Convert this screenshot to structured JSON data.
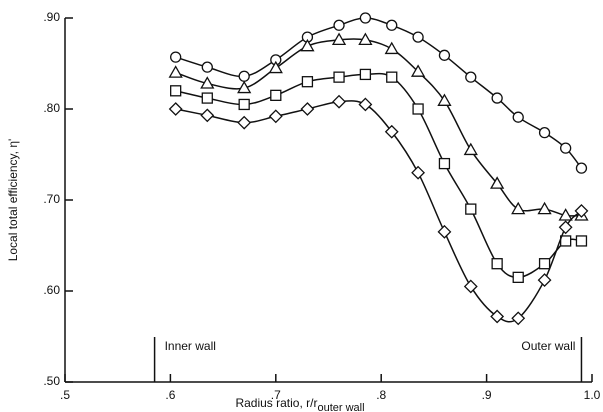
{
  "chart_data": {
    "type": "line",
    "xlabel": "Radius ratio, r/r",
    "xlabel_sub": "outer wall",
    "ylabel": "Local total efficiency, η'",
    "x": [
      0.605,
      0.635,
      0.67,
      0.7,
      0.73,
      0.76,
      0.785,
      0.81,
      0.835,
      0.86,
      0.885,
      0.91,
      0.93,
      0.955,
      0.975,
      0.99
    ],
    "series": [
      {
        "marker": "circle",
        "color": "#111111",
        "values": [
          0.857,
          0.846,
          0.836,
          0.854,
          0.879,
          0.892,
          0.9,
          0.892,
          0.879,
          0.859,
          0.835,
          0.812,
          0.791,
          0.774,
          0.757,
          0.735
        ]
      },
      {
        "marker": "triangle",
        "color": "#111111",
        "values": [
          0.84,
          0.828,
          0.823,
          0.845,
          0.869,
          0.876,
          0.876,
          0.866,
          0.841,
          0.809,
          0.755,
          0.718,
          0.69,
          0.69,
          0.683,
          0.683
        ]
      },
      {
        "marker": "square",
        "color": "#111111",
        "values": [
          0.82,
          0.812,
          0.805,
          0.815,
          0.83,
          0.835,
          0.838,
          0.835,
          0.8,
          0.74,
          0.69,
          0.63,
          0.615,
          0.63,
          0.655,
          0.655
        ]
      },
      {
        "marker": "diamond",
        "color": "#111111",
        "values": [
          0.8,
          0.793,
          0.785,
          0.792,
          0.8,
          0.808,
          0.805,
          0.775,
          0.73,
          0.665,
          0.605,
          0.572,
          0.57,
          0.612,
          0.67,
          0.688
        ]
      }
    ],
    "xlim": [
      0.5,
      1.0
    ],
    "xticks": [
      {
        "value": 0.5,
        "label": ".5"
      },
      {
        "value": 0.6,
        "label": ".6"
      },
      {
        "value": 0.7,
        "label": ".7"
      },
      {
        "value": 0.8,
        "label": ".8"
      },
      {
        "value": 0.9,
        "label": ".9"
      },
      {
        "value": 1.0,
        "label": "1.0"
      }
    ],
    "ylim": [
      0.5,
      0.9
    ],
    "yticks": [
      {
        "value": 0.5,
        "label": ".50"
      },
      {
        "value": 0.6,
        "label": ".60"
      },
      {
        "value": 0.7,
        "label": ".70"
      },
      {
        "value": 0.8,
        "label": ".80"
      },
      {
        "value": 0.9,
        "label": ".90"
      }
    ],
    "annotations": [
      {
        "text": "Inner wall",
        "x": 0.585
      },
      {
        "text": "Outer wall",
        "x": 0.99
      }
    ]
  }
}
